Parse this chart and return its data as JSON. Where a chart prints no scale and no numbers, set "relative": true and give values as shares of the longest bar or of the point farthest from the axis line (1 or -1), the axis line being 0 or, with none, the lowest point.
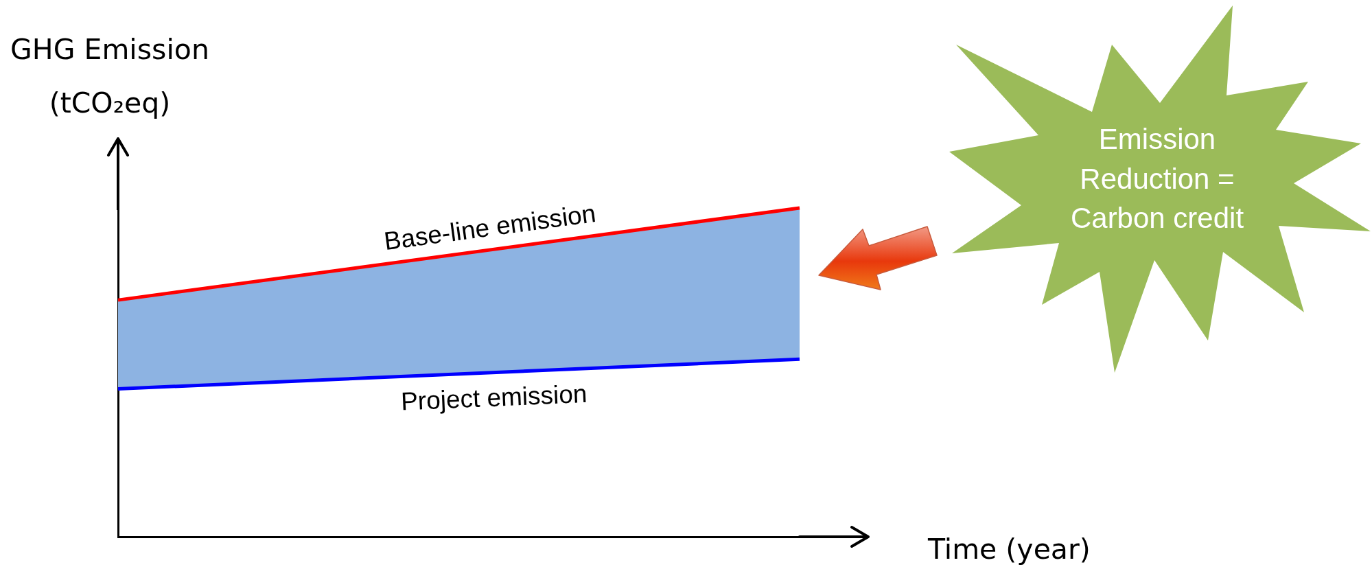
{
  "chart_data": {
    "type": "line",
    "relative": true,
    "categories": [
      null,
      null
    ],
    "xlabel": "Time (year)",
    "ylabel": "GHG Emission (tCO₂eq)",
    "series": [
      {
        "name": "Base-line emission",
        "color": "#ff0000",
        "values": [
          0.72,
          1
        ]
      },
      {
        "name": "Project emission",
        "color": "#0000ff",
        "values": [
          0.45,
          0.54
        ]
      },
      {
        "color": "#8db3e2",
        "values": [
          null,
          null
        ],
        "lower": [
          0.45,
          0.54
        ],
        "upper": [
          0.72,
          1
        ]
      }
    ],
    "annotations": [
      "Emission Reduction = Carbon credit"
    ],
    "marker": "none",
    "tick_labels": false
  }
}
